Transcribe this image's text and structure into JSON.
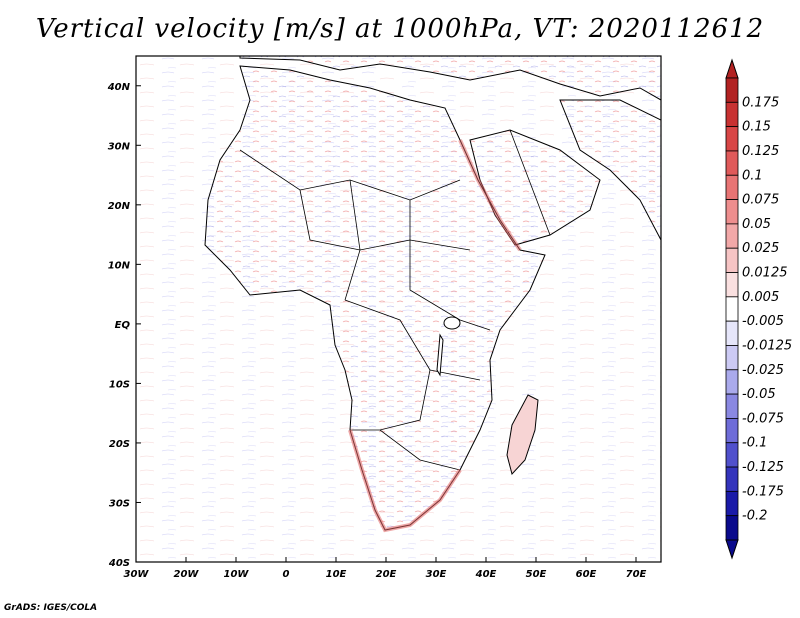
{
  "title": "Vertical velocity [m/s] at 1000hPa, VT: 2020112612",
  "footer": "GrADS: IGES/COLA",
  "map": {
    "lon_range": [
      -30,
      75
    ],
    "lat_range": [
      -40,
      45
    ],
    "lon_ticks": [
      "30W",
      "20W",
      "10W",
      "0",
      "10E",
      "20E",
      "30E",
      "40E",
      "50E",
      "60E",
      "70E"
    ],
    "lat_ticks": [
      "40N",
      "30N",
      "20N",
      "10N",
      "EQ",
      "10S",
      "20S",
      "30S",
      "40S"
    ]
  },
  "colorbar": {
    "labels": [
      "0.175",
      "0.15",
      "0.125",
      "0.1",
      "0.075",
      "0.05",
      "0.025",
      "0.0125",
      "0.005",
      "-0.005",
      "-0.0125",
      "-0.025",
      "-0.05",
      "-0.075",
      "-0.1",
      "-0.125",
      "-0.175",
      "-0.2"
    ],
    "colors": [
      "#b22222",
      "#c83232",
      "#d84646",
      "#e05a5a",
      "#e87474",
      "#ee8e8e",
      "#f2a8a8",
      "#f6c4c4",
      "#fae0e0",
      "#ffffff",
      "#e6e6fa",
      "#cccaf4",
      "#aaaaec",
      "#8a88e2",
      "#6e6cd8",
      "#5050cc",
      "#3434bc",
      "#1a1aa8",
      "#0a0a8c"
    ]
  }
}
